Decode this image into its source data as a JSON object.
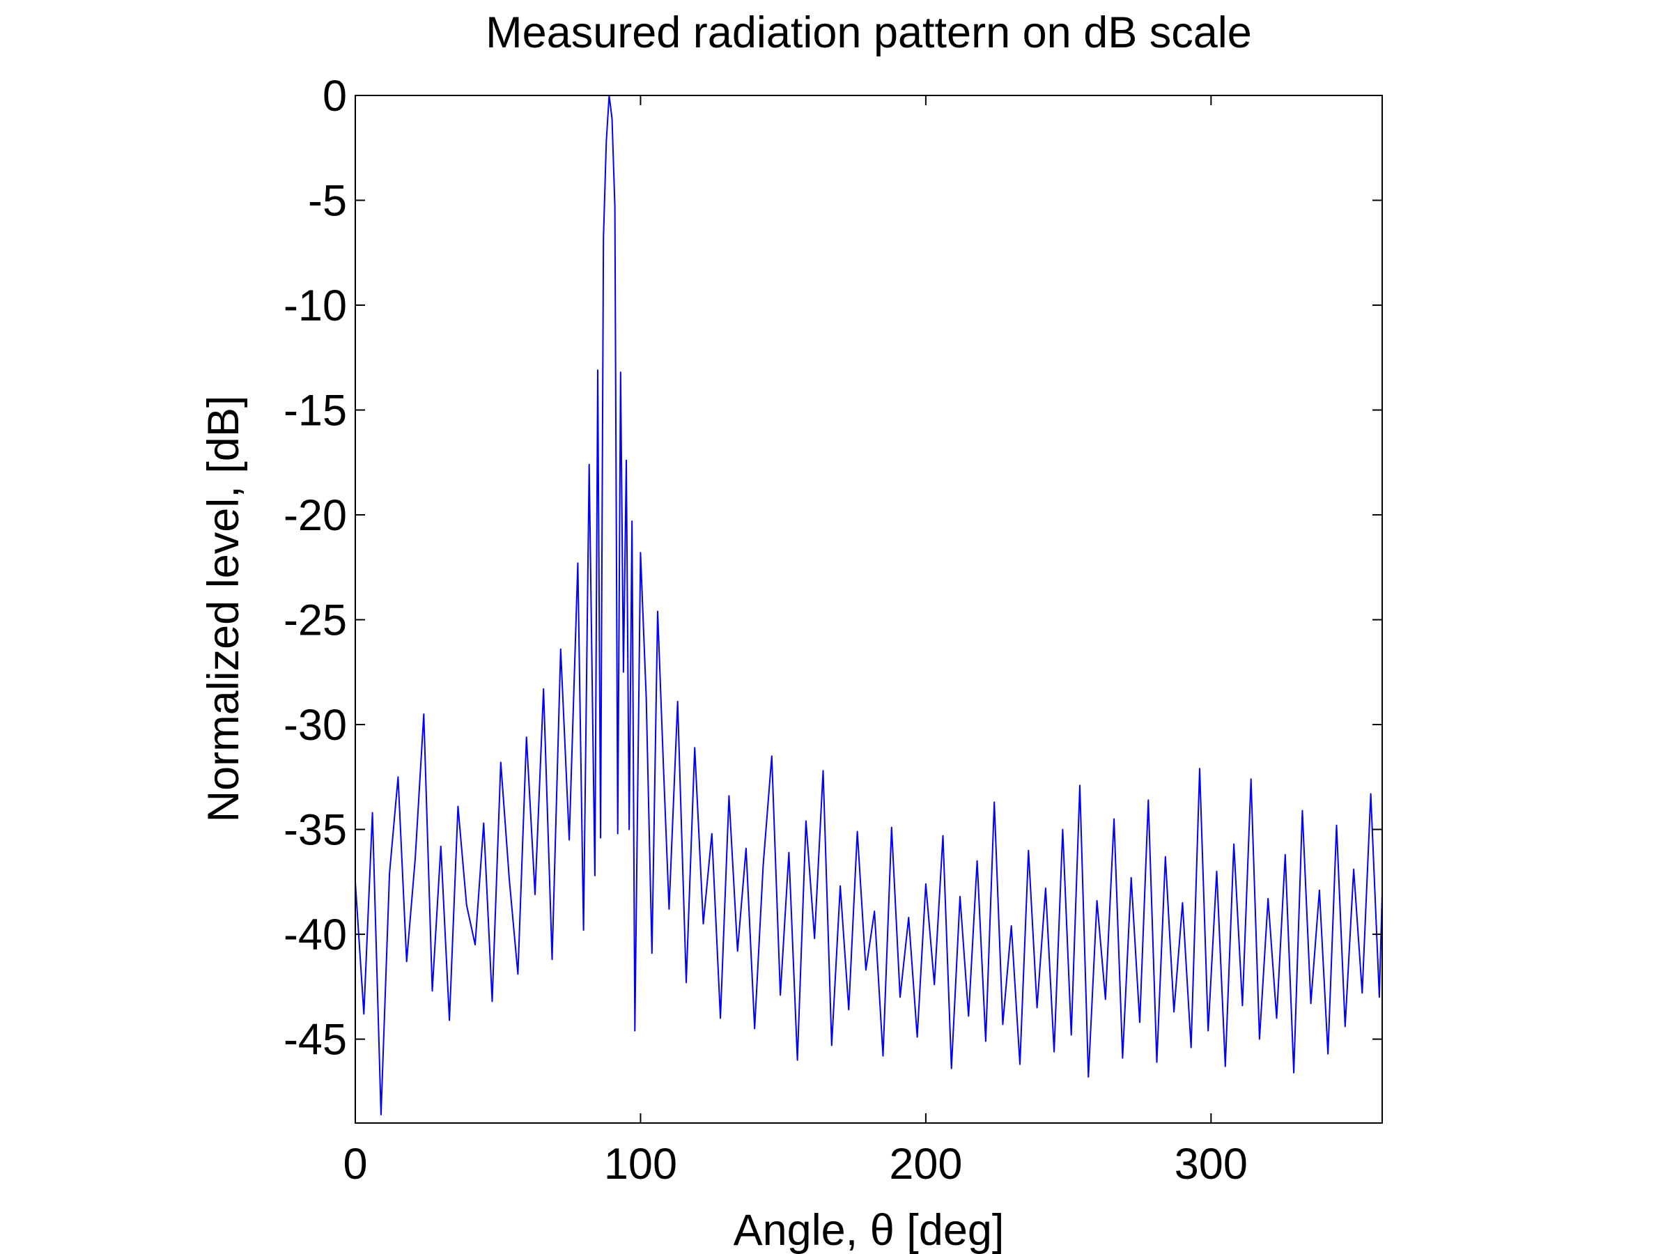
{
  "chart_data": {
    "type": "line",
    "title": "Measured radiation pattern on dB scale",
    "xlabel": "Angle, θ [deg]",
    "ylabel": "Normalized level, [dB]",
    "xlim": [
      0,
      360
    ],
    "ylim": [
      -49,
      0
    ],
    "xticks": [
      0,
      100,
      200,
      300
    ],
    "xtick_labels": [
      "0",
      "100",
      "200",
      "300"
    ],
    "yticks": [
      0,
      -5,
      -10,
      -15,
      -20,
      -25,
      -30,
      -35,
      -40,
      -45
    ],
    "ytick_labels": [
      "0",
      "-5",
      "-10",
      "-15",
      "-20",
      "-25",
      "-30",
      "-35",
      "-40",
      "-45"
    ],
    "grid": false,
    "line_color": "#0000ff",
    "series": [
      {
        "x": [
          0,
          3,
          6,
          9,
          12,
          15,
          18,
          21,
          24,
          27,
          30,
          33,
          36,
          39,
          42,
          45,
          48,
          51,
          54,
          57,
          60,
          63,
          66,
          69,
          72,
          75,
          78,
          80,
          82,
          84,
          85,
          86,
          87,
          88,
          89,
          90,
          91,
          92,
          93,
          94,
          95,
          96,
          97,
          98,
          100,
          102,
          104,
          106,
          108,
          110,
          113,
          116,
          119,
          122,
          125,
          128,
          131,
          134,
          137,
          140,
          143,
          146,
          149,
          152,
          155,
          158,
          161,
          164,
          167,
          170,
          173,
          176,
          179,
          182,
          185,
          188,
          191,
          194,
          197,
          200,
          203,
          206,
          209,
          212,
          215,
          218,
          221,
          224,
          227,
          230,
          233,
          236,
          239,
          242,
          245,
          248,
          251,
          254,
          257,
          260,
          263,
          266,
          269,
          272,
          275,
          278,
          281,
          284,
          287,
          290,
          293,
          296,
          299,
          302,
          305,
          308,
          311,
          314,
          317,
          320,
          323,
          326,
          329,
          332,
          335,
          338,
          341,
          344,
          347,
          350,
          353,
          356,
          359,
          360
        ],
        "y": [
          -37.5,
          -43.8,
          -34.2,
          -48.6,
          -37.1,
          -32.5,
          -41.3,
          -36.4,
          -29.5,
          -42.7,
          -35.8,
          -44.1,
          -33.9,
          -38.6,
          -40.5,
          -34.7,
          -43.2,
          -31.8,
          -37.4,
          -41.9,
          -30.6,
          -38.1,
          -28.3,
          -41.2,
          -26.4,
          -35.5,
          -22.3,
          -39.8,
          -17.6,
          -37.2,
          -13.1,
          -35.4,
          -6.8,
          -2.2,
          0.0,
          -1.1,
          -5.3,
          -35.2,
          -13.2,
          -27.5,
          -17.4,
          -35.0,
          -20.3,
          -44.6,
          -21.8,
          -28.7,
          -40.9,
          -24.6,
          -31.9,
          -38.8,
          -28.9,
          -42.3,
          -31.1,
          -39.5,
          -35.2,
          -44.0,
          -33.4,
          -40.8,
          -35.9,
          -44.5,
          -36.7,
          -31.5,
          -42.9,
          -36.1,
          -46.0,
          -34.6,
          -40.2,
          -32.2,
          -45.3,
          -37.7,
          -43.6,
          -35.1,
          -41.7,
          -38.9,
          -45.8,
          -34.9,
          -43.0,
          -39.2,
          -44.9,
          -37.6,
          -42.4,
          -35.3,
          -46.4,
          -38.2,
          -43.9,
          -36.5,
          -45.1,
          -33.7,
          -44.3,
          -39.6,
          -46.2,
          -36.0,
          -43.5,
          -37.8,
          -45.6,
          -35.0,
          -44.8,
          -32.9,
          -46.8,
          -38.4,
          -43.1,
          -34.5,
          -45.9,
          -37.3,
          -44.2,
          -33.6,
          -46.1,
          -36.3,
          -43.7,
          -38.5,
          -45.4,
          -32.1,
          -44.6,
          -37.0,
          -46.3,
          -35.7,
          -43.4,
          -32.6,
          -45.0,
          -38.3,
          -44.0,
          -36.2,
          -46.6,
          -34.1,
          -43.3,
          -37.9,
          -45.7,
          -34.8,
          -44.4,
          -36.9,
          -42.8,
          -33.3,
          -43.0,
          -38.0
        ]
      }
    ]
  }
}
